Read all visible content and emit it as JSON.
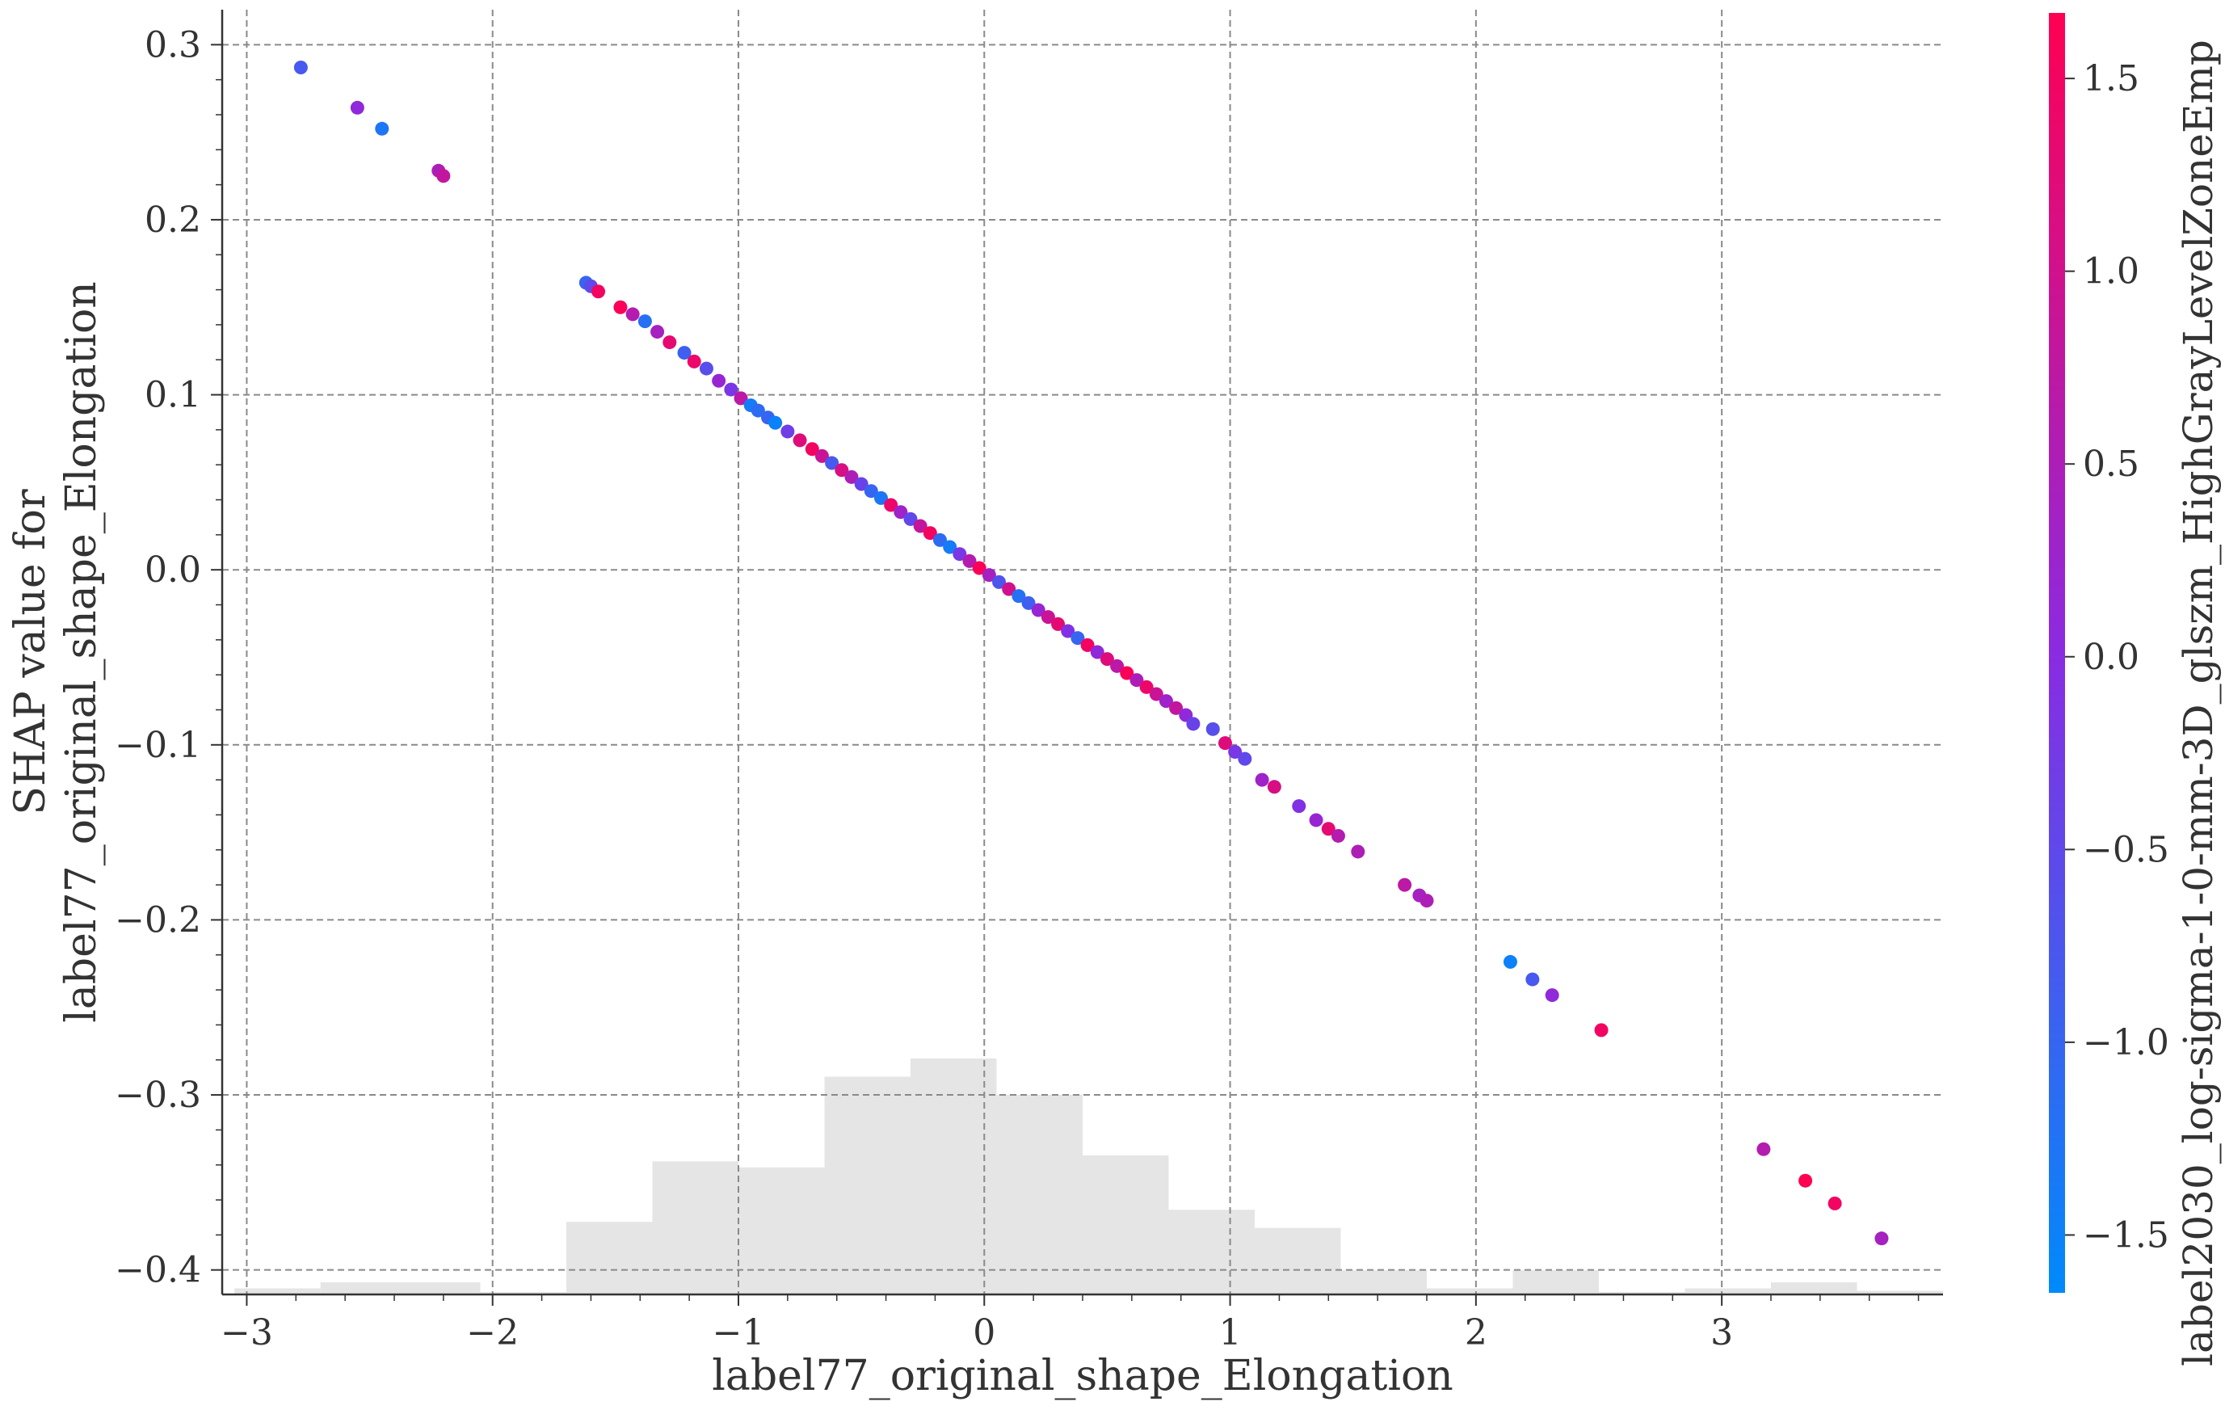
{
  "chart_data": {
    "type": "scatter",
    "title": "",
    "xlabel": "label77_original_shape_Elongation",
    "ylabel_lines": [
      "SHAP value for",
      "label77_original_shape_Elongation"
    ],
    "colorbar_label": "label2030_log-sigma-1-0-mm-3D_glszm_HighGrayLevelZoneEmp",
    "xlim": [
      -3.1,
      3.9
    ],
    "ylim": [
      -0.414,
      0.32
    ],
    "xticks": [
      -3,
      -2,
      -1,
      0,
      1,
      2,
      3
    ],
    "xtick_labels": [
      "−3",
      "−2",
      "−1",
      "0",
      "1",
      "2",
      "3"
    ],
    "yticks": [
      0.3,
      0.2,
      0.1,
      0.0,
      -0.1,
      -0.2,
      -0.3,
      -0.4
    ],
    "ytick_labels": [
      "0.3",
      "0.2",
      "0.1",
      "0.0",
      "−0.1",
      "−0.2",
      "−0.3",
      "−0.4"
    ],
    "grid": true,
    "colorbar": {
      "range": [
        -1.65,
        1.67
      ],
      "ticks": [
        1.5,
        1.0,
        0.5,
        0.0,
        -0.5,
        -1.0,
        -1.5
      ],
      "tick_labels": [
        "1.5",
        "1.0",
        "0.5",
        "0.0",
        "−0.5",
        "−1.0",
        "−1.5"
      ],
      "low_color": "#008afb",
      "mid_color": "#8a2be2",
      "high_color": "#ff0052"
    },
    "histogram": {
      "color": "#e5e5e5",
      "bin_edges": [
        -3.05,
        -2.7,
        -2.05,
        -1.7,
        -1.35,
        -1.0,
        -0.65,
        -0.3,
        0.05,
        0.4,
        0.75,
        1.1,
        1.45,
        1.8,
        2.15,
        2.5,
        2.85,
        3.2,
        3.55,
        3.9
      ],
      "heights": [
        0.5,
        1,
        0.2,
        6,
        11,
        10.5,
        18,
        19.5,
        16.5,
        11.5,
        7,
        5.5,
        2,
        0.5,
        2,
        0.2,
        0.5,
        1,
        0.3
      ]
    },
    "series": [
      {
        "x": [
          -2.78,
          -2.55,
          -2.45,
          -2.22,
          -2.2,
          -1.62,
          -1.6,
          -1.57,
          -1.48,
          -1.43,
          -1.38,
          -1.33,
          -1.28,
          -1.22,
          -1.18,
          -1.13,
          -1.08,
          -1.03,
          -0.99,
          -0.95,
          -0.92,
          -0.88,
          -0.85,
          -0.8,
          -0.75,
          -0.7,
          -0.66,
          -0.62,
          -0.58,
          -0.54,
          -0.5,
          -0.46,
          -0.42,
          -0.38,
          -0.34,
          -0.3,
          -0.26,
          -0.22,
          -0.18,
          -0.14,
          -0.1,
          -0.06,
          -0.02,
          0.02,
          0.06,
          0.1,
          0.14,
          0.18,
          0.22,
          0.26,
          0.3,
          0.34,
          0.38,
          0.42,
          0.46,
          0.5,
          0.54,
          0.58,
          0.62,
          0.66,
          0.7,
          0.74,
          0.78,
          0.82,
          0.85,
          0.93,
          0.98,
          1.02,
          1.06,
          1.13,
          1.18,
          1.28,
          1.35,
          1.4,
          1.44,
          1.52,
          1.71,
          1.77,
          1.8,
          2.14,
          2.23,
          2.31,
          2.51,
          3.17,
          3.34,
          3.46,
          3.65
        ],
        "y": [
          0.287,
          0.264,
          0.252,
          0.228,
          0.225,
          0.164,
          0.162,
          0.159,
          0.15,
          0.146,
          0.142,
          0.136,
          0.13,
          0.124,
          0.119,
          0.115,
          0.108,
          0.103,
          0.098,
          0.094,
          0.091,
          0.087,
          0.084,
          0.079,
          0.074,
          0.069,
          0.065,
          0.061,
          0.057,
          0.053,
          0.049,
          0.045,
          0.041,
          0.037,
          0.033,
          0.029,
          0.025,
          0.021,
          0.017,
          0.013,
          0.009,
          0.005,
          0.001,
          -0.003,
          -0.007,
          -0.011,
          -0.015,
          -0.019,
          -0.023,
          -0.027,
          -0.031,
          -0.035,
          -0.039,
          -0.043,
          -0.047,
          -0.051,
          -0.055,
          -0.059,
          -0.063,
          -0.067,
          -0.071,
          -0.075,
          -0.079,
          -0.083,
          -0.088,
          -0.091,
          -0.099,
          -0.104,
          -0.108,
          -0.12,
          -0.124,
          -0.135,
          -0.143,
          -0.148,
          -0.152,
          -0.161,
          -0.18,
          -0.186,
          -0.189,
          -0.224,
          -0.234,
          -0.243,
          -0.263,
          -0.331,
          -0.349,
          -0.362,
          -0.382
        ],
        "c": [
          -0.8,
          0.1,
          -1.3,
          0.5,
          0.8,
          -1.0,
          -0.5,
          1.5,
          1.6,
          0.6,
          -1.2,
          0.4,
          1.3,
          -0.9,
          1.4,
          -0.6,
          0.2,
          -0.2,
          0.7,
          -1.4,
          -1.1,
          -1.0,
          -1.5,
          -0.3,
          1.2,
          1.5,
          0.9,
          -0.8,
          1.1,
          0.5,
          -0.4,
          -1.0,
          -1.3,
          1.4,
          0.3,
          -0.5,
          0.8,
          1.5,
          -1.1,
          -1.4,
          -0.2,
          0.6,
          1.6,
          0.4,
          -0.7,
          1.0,
          -1.2,
          -0.9,
          0.2,
          0.9,
          1.3,
          -0.1,
          -1.0,
          1.5,
          0.1,
          1.2,
          0.7,
          1.6,
          0.5,
          1.4,
          0.9,
          0.3,
          0.8,
          0.1,
          -0.4,
          -0.6,
          1.2,
          -0.2,
          -0.5,
          0.3,
          1.1,
          -0.1,
          0.2,
          1.3,
          0.6,
          0.5,
          0.7,
          0.4,
          0.5,
          -1.5,
          -0.8,
          0.1,
          1.5,
          0.6,
          1.7,
          1.5,
          0.4
        ]
      }
    ]
  }
}
